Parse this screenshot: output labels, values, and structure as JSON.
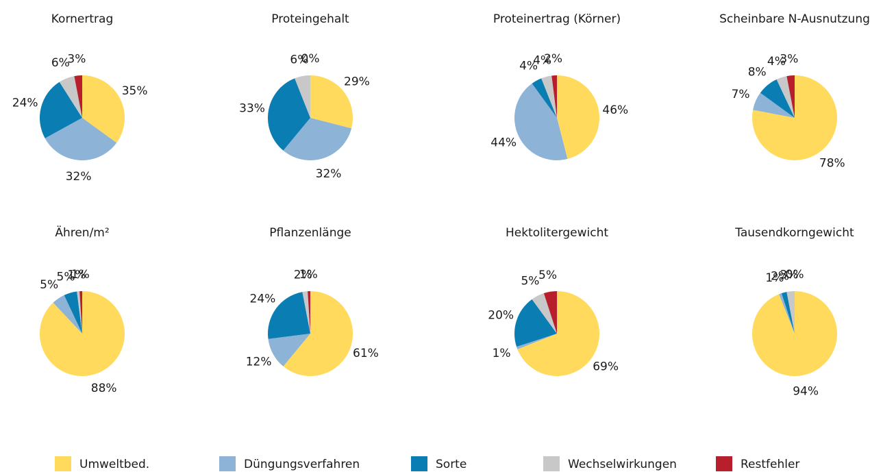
{
  "legend": {
    "labels": [
      "Umweltbed.",
      "Düngungsverfahren",
      "Sorte",
      "Wechselwirkungen",
      "Restfehler"
    ],
    "colors": [
      "#FFDA5C",
      "#8DB3D6",
      "#0A7EB2",
      "#C8C8C8",
      "#B81F2D"
    ]
  },
  "chart_data": [
    {
      "type": "pie",
      "title": "Kornertrag",
      "values": [
        35,
        32,
        24,
        6,
        3
      ],
      "value_labels": [
        "35%",
        "32%",
        "24%",
        "6%",
        "3%"
      ]
    },
    {
      "type": "pie",
      "title": "Proteingehalt",
      "values": [
        29,
        32,
        33,
        6,
        0
      ],
      "value_labels": [
        "29%",
        "32%",
        "33%",
        "6%",
        "0%"
      ]
    },
    {
      "type": "pie",
      "title": "Proteinertrag (Körner)",
      "values": [
        46,
        44,
        4,
        4,
        2
      ],
      "value_labels": [
        "46%",
        "44%",
        "4%",
        "4%",
        "2%"
      ]
    },
    {
      "type": "pie",
      "title": "Scheinbare N-Ausnutzung",
      "values": [
        78,
        7,
        8,
        4,
        3
      ],
      "value_labels": [
        "78%",
        "7%",
        "8%",
        "4%",
        "3%"
      ]
    },
    {
      "type": "pie",
      "title": "Ähren/m²",
      "values": [
        88,
        5,
        5,
        1,
        1
      ],
      "value_labels": [
        "88%",
        "5%",
        "5%",
        "1%",
        "1%"
      ]
    },
    {
      "type": "pie",
      "title": "Pflanzenlänge",
      "values": [
        61,
        12,
        24,
        2,
        1
      ],
      "value_labels": [
        "61%",
        "12%",
        "24%",
        "2%",
        "1%"
      ]
    },
    {
      "type": "pie",
      "title": "Hektolitergewicht",
      "values": [
        69,
        1,
        20,
        5,
        5
      ],
      "value_labels": [
        "69%",
        "1%",
        "20%",
        "5%",
        "5%"
      ]
    },
    {
      "type": "pie",
      "title": "Tausendkorngewicht",
      "values": [
        94,
        1,
        2,
        3,
        0
      ],
      "value_labels": [
        "94%",
        "1%",
        "2%",
        "3%",
        "0%"
      ]
    }
  ]
}
